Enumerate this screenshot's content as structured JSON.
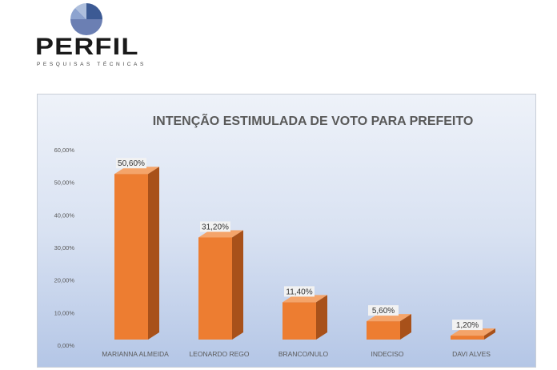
{
  "logo": {
    "brand": "PERFIL",
    "tagline": "PESQUISAS TÉCNICAS",
    "colors": [
      "#3c5a94",
      "#6b7fb3",
      "#9bb2d6"
    ]
  },
  "chart_data": {
    "type": "bar",
    "title": "INTENÇÃO ESTIMULADA DE VOTO PARA PREFEITO",
    "categories": [
      "MARIANNA ALMEIDA",
      "LEONARDO REGO",
      "BRANCO/NULO",
      "INDECISO",
      "DAVI ALVES"
    ],
    "values": [
      50.6,
      31.2,
      11.4,
      5.6,
      1.2
    ],
    "data_labels": [
      "50,60%",
      "31,20%",
      "11,40%",
      "5,60%",
      "1,20%"
    ],
    "ylim": [
      0,
      60
    ],
    "yticks": [
      "0,00%",
      "10,00%",
      "20,00%",
      "30,00%",
      "40,00%",
      "50,00%",
      "60,00%"
    ],
    "grid": false,
    "bar_color": "#ed7d31",
    "style": "3d-column"
  }
}
